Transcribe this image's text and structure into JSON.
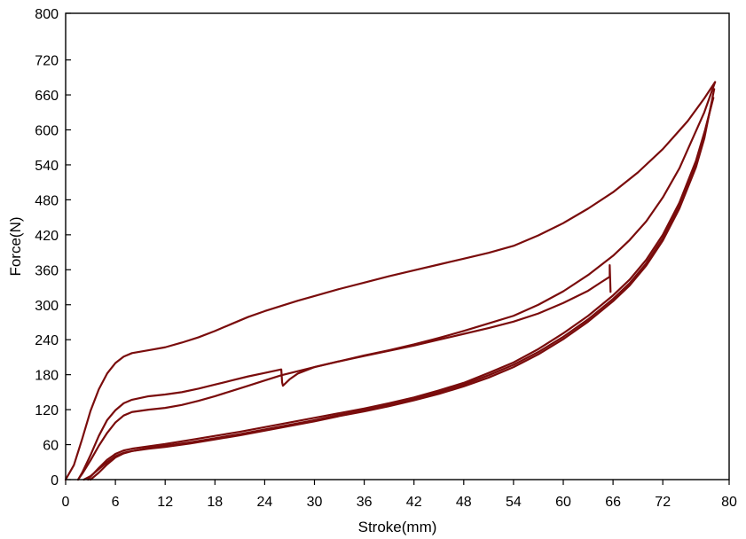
{
  "chart_data": {
    "type": "line",
    "title": "",
    "xlabel": "Stroke(mm)",
    "ylabel": "Force(N)",
    "xlim": [
      0,
      80
    ],
    "ylim": [
      0,
      800
    ],
    "x_ticks": [
      0,
      6,
      12,
      18,
      24,
      30,
      36,
      42,
      48,
      54,
      60,
      66,
      72,
      80
    ],
    "y_ticks": [
      0,
      60,
      120,
      180,
      240,
      300,
      360,
      420,
      480,
      540,
      600,
      660,
      720,
      800
    ],
    "grid": false,
    "legend": "none",
    "line_color": "#7a0c0c",
    "series": [
      {
        "points": [
          [
            0,
            0
          ],
          [
            1,
            25
          ],
          [
            2,
            70
          ],
          [
            3,
            118
          ],
          [
            4,
            155
          ],
          [
            5,
            182
          ],
          [
            6,
            200
          ],
          [
            7,
            211
          ],
          [
            8,
            217
          ],
          [
            10,
            222
          ],
          [
            12,
            227
          ],
          [
            14,
            235
          ],
          [
            16,
            244
          ],
          [
            18,
            255
          ],
          [
            20,
            267
          ],
          [
            22,
            279
          ],
          [
            24,
            289
          ],
          [
            26,
            298
          ],
          [
            28,
            307
          ],
          [
            30,
            315
          ],
          [
            33,
            327
          ],
          [
            36,
            338
          ],
          [
            39,
            349
          ],
          [
            42,
            359
          ],
          [
            45,
            369
          ],
          [
            48,
            379
          ],
          [
            51,
            389
          ],
          [
            54,
            401
          ],
          [
            57,
            419
          ],
          [
            60,
            440
          ],
          [
            63,
            465
          ],
          [
            66,
            493
          ],
          [
            69,
            527
          ],
          [
            72,
            567
          ],
          [
            75,
            615
          ],
          [
            77,
            654
          ],
          [
            78.3,
            682
          ]
        ]
      },
      {
        "points": [
          [
            78.3,
            682
          ],
          [
            77,
            630
          ],
          [
            76,
            598
          ],
          [
            75,
            566
          ],
          [
            74,
            534
          ],
          [
            72,
            484
          ],
          [
            70,
            443
          ],
          [
            68,
            411
          ],
          [
            66,
            384
          ],
          [
            63,
            351
          ],
          [
            60,
            323
          ],
          [
            57,
            300
          ],
          [
            54,
            281
          ],
          [
            51,
            268
          ],
          [
            48,
            255
          ],
          [
            45,
            243
          ],
          [
            42,
            232
          ],
          [
            39,
            222
          ],
          [
            36,
            213
          ],
          [
            33,
            203
          ],
          [
            30,
            193
          ],
          [
            28,
            186
          ],
          [
            26,
            179
          ],
          [
            24,
            170
          ],
          [
            22,
            161
          ],
          [
            20,
            152
          ],
          [
            18,
            143
          ],
          [
            16,
            135
          ],
          [
            14,
            128
          ],
          [
            12,
            123
          ],
          [
            10,
            120
          ],
          [
            8,
            116
          ],
          [
            7,
            110
          ],
          [
            6,
            98
          ],
          [
            5,
            80
          ],
          [
            4,
            58
          ],
          [
            3,
            33
          ],
          [
            2,
            10
          ],
          [
            1.5,
            0
          ]
        ]
      },
      {
        "points": [
          [
            1.5,
            0
          ],
          [
            2,
            12
          ],
          [
            3,
            42
          ],
          [
            4,
            75
          ],
          [
            5,
            102
          ],
          [
            6,
            119
          ],
          [
            7,
            131
          ],
          [
            8,
            137
          ],
          [
            10,
            143
          ],
          [
            12,
            146
          ],
          [
            14,
            150
          ],
          [
            16,
            156
          ],
          [
            18,
            163
          ],
          [
            20,
            170
          ],
          [
            22,
            177
          ],
          [
            24,
            183
          ],
          [
            26,
            189
          ],
          [
            26.1,
            167
          ],
          [
            26.2,
            161
          ],
          [
            27,
            172
          ],
          [
            28,
            182
          ],
          [
            30,
            193
          ],
          [
            33,
            203
          ],
          [
            36,
            212
          ],
          [
            39,
            221
          ],
          [
            42,
            230
          ],
          [
            45,
            240
          ],
          [
            48,
            250
          ],
          [
            51,
            260
          ],
          [
            54,
            271
          ],
          [
            57,
            285
          ],
          [
            60,
            303
          ],
          [
            63,
            324
          ],
          [
            64.5,
            338
          ],
          [
            65.6,
            348
          ],
          [
            65.6,
            368
          ],
          [
            65.7,
            322
          ]
        ]
      },
      {
        "points": [
          [
            2.2,
            0
          ],
          [
            3,
            6
          ],
          [
            4,
            18
          ],
          [
            5,
            30
          ],
          [
            6,
            40
          ],
          [
            7,
            46
          ],
          [
            8,
            49
          ],
          [
            10,
            54
          ],
          [
            12,
            58
          ],
          [
            15,
            64
          ],
          [
            18,
            71
          ],
          [
            21,
            78
          ],
          [
            24,
            86
          ],
          [
            27,
            94
          ],
          [
            30,
            102
          ],
          [
            33,
            111
          ],
          [
            36,
            119
          ],
          [
            39,
            128
          ],
          [
            42,
            138
          ],
          [
            45,
            150
          ],
          [
            48,
            163
          ],
          [
            51,
            179
          ],
          [
            54,
            197
          ],
          [
            57,
            219
          ],
          [
            60,
            245
          ],
          [
            63,
            275
          ],
          [
            66,
            310
          ],
          [
            68,
            337
          ],
          [
            70,
            371
          ],
          [
            72,
            414
          ],
          [
            74,
            470
          ],
          [
            76,
            542
          ],
          [
            77,
            592
          ],
          [
            77.9,
            645
          ]
        ]
      },
      {
        "points": [
          [
            78.1,
            655
          ],
          [
            77.1,
            600
          ],
          [
            76,
            547
          ],
          [
            74,
            475
          ],
          [
            72,
            420
          ],
          [
            70,
            377
          ],
          [
            68,
            343
          ],
          [
            66,
            316
          ],
          [
            63,
            281
          ],
          [
            60,
            251
          ],
          [
            57,
            224
          ],
          [
            54,
            201
          ],
          [
            51,
            183
          ],
          [
            48,
            166
          ],
          [
            45,
            153
          ],
          [
            42,
            141
          ],
          [
            39,
            131
          ],
          [
            36,
            122
          ],
          [
            33,
            114
          ],
          [
            30,
            106
          ],
          [
            27,
            98
          ],
          [
            24,
            90
          ],
          [
            21,
            82
          ],
          [
            18,
            75
          ],
          [
            15,
            68
          ],
          [
            12,
            61
          ],
          [
            10,
            57
          ],
          [
            8,
            53
          ],
          [
            7,
            50
          ],
          [
            6,
            44
          ],
          [
            5,
            34
          ],
          [
            4,
            20
          ],
          [
            3,
            5
          ],
          [
            2.7,
            0
          ]
        ]
      },
      {
        "points": [
          [
            3,
            0
          ],
          [
            4,
            12
          ],
          [
            5,
            26
          ],
          [
            6,
            38
          ],
          [
            7,
            45
          ],
          [
            8,
            49
          ],
          [
            10,
            53
          ],
          [
            12,
            56
          ],
          [
            15,
            62
          ],
          [
            18,
            69
          ],
          [
            21,
            76
          ],
          [
            24,
            84
          ],
          [
            27,
            92
          ],
          [
            30,
            100
          ],
          [
            33,
            109
          ],
          [
            36,
            117
          ],
          [
            39,
            126
          ],
          [
            42,
            136
          ],
          [
            45,
            147
          ],
          [
            48,
            160
          ],
          [
            51,
            175
          ],
          [
            54,
            193
          ],
          [
            57,
            215
          ],
          [
            60,
            241
          ],
          [
            63,
            271
          ],
          [
            66,
            306
          ],
          [
            68,
            333
          ],
          [
            70,
            367
          ],
          [
            72,
            410
          ],
          [
            74,
            465
          ],
          [
            76,
            536
          ],
          [
            77,
            585
          ],
          [
            78.2,
            670
          ]
        ]
      }
    ]
  }
}
